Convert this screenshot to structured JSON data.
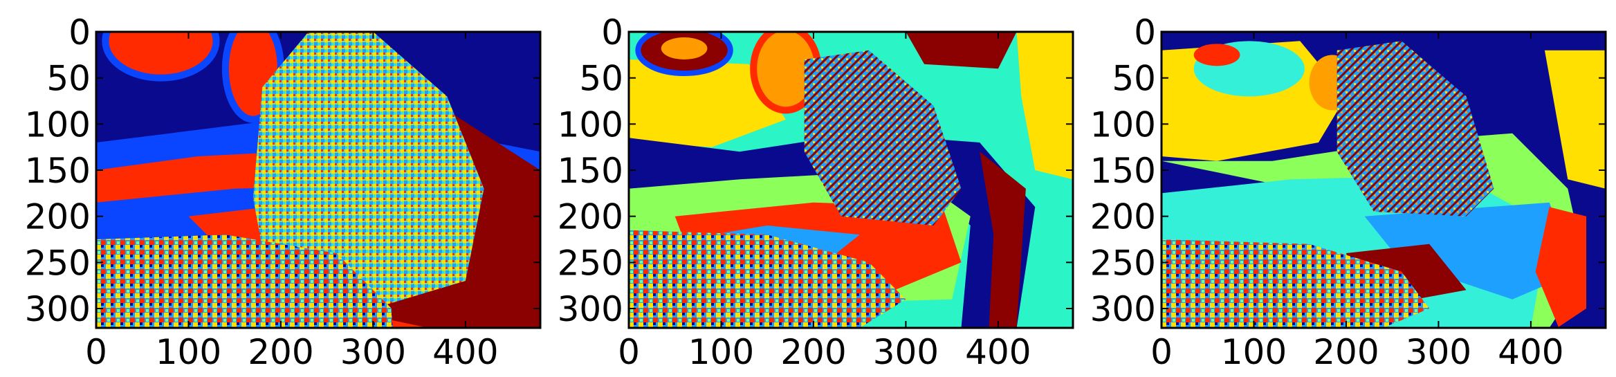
{
  "chart_data": [
    {
      "type": "heatmap",
      "panel": "left",
      "image_shape": {
        "width": 481,
        "height": 321
      },
      "xlim": [
        0,
        481
      ],
      "ylim": [
        321,
        0
      ],
      "xticks": [
        0,
        100,
        200,
        300,
        400
      ],
      "yticks": [
        0,
        50,
        100,
        150,
        200,
        250,
        300
      ],
      "xtick_labels": [
        "0",
        "100",
        "200",
        "300",
        "400"
      ],
      "ytick_labels": [
        "0",
        "50",
        "100",
        "150",
        "200",
        "250",
        "300"
      ],
      "colormap": "jet",
      "subject": "butterfly",
      "texture": "noisy checker pattern over butterfly and lower-left foliage",
      "colors": {
        "bg": "#0a0a8f",
        "blue": "#0a46ff",
        "red": "#ff2a00",
        "orange": "#ff7a00",
        "darkred": "#8b0000",
        "cyan": "#22e0ff",
        "yellow": "#ffe000"
      }
    },
    {
      "type": "heatmap",
      "panel": "middle",
      "image_shape": {
        "width": 481,
        "height": 321
      },
      "xlim": [
        0,
        481
      ],
      "ylim": [
        321,
        0
      ],
      "xticks": [
        0,
        100,
        200,
        300,
        400
      ],
      "yticks": [
        0,
        50,
        100,
        150,
        200,
        250,
        300
      ],
      "xtick_labels": [
        "0",
        "100",
        "200",
        "300",
        "400"
      ],
      "ytick_labels": [
        "0",
        "50",
        "100",
        "150",
        "200",
        "250",
        "300"
      ],
      "colormap": "jet",
      "subject": "butterfly",
      "texture": "quantized regions with dense edges",
      "colors": {
        "yellow": "#ffe000",
        "cyan": "#2bf5c6",
        "navy": "#0a0a8f",
        "blue": "#0a46ff",
        "lightblue": "#1ea0ff",
        "green": "#8cff5a",
        "red": "#ff2a00",
        "darkred": "#8b0000",
        "orange": "#ff9a00"
      }
    },
    {
      "type": "heatmap",
      "panel": "right",
      "image_shape": {
        "width": 481,
        "height": 321
      },
      "xlim": [
        0,
        481
      ],
      "ylim": [
        321,
        0
      ],
      "xticks": [
        0,
        100,
        200,
        300,
        400
      ],
      "yticks": [
        0,
        50,
        100,
        150,
        200,
        250,
        300
      ],
      "xtick_labels": [
        "0",
        "100",
        "200",
        "300",
        "400"
      ],
      "ytick_labels": [
        "0",
        "50",
        "100",
        "150",
        "200",
        "250",
        "300"
      ],
      "colormap": "jet",
      "subject": "butterfly",
      "texture": "smooth quantized regions",
      "colors": {
        "yellow": "#ffe000",
        "cyan": "#35f0d8",
        "navy": "#0a0a8f",
        "green": "#8cff5a",
        "lightblue": "#1ea0ff",
        "red": "#ff2a00",
        "darkred": "#8b0000",
        "orange": "#ffa000"
      }
    }
  ]
}
